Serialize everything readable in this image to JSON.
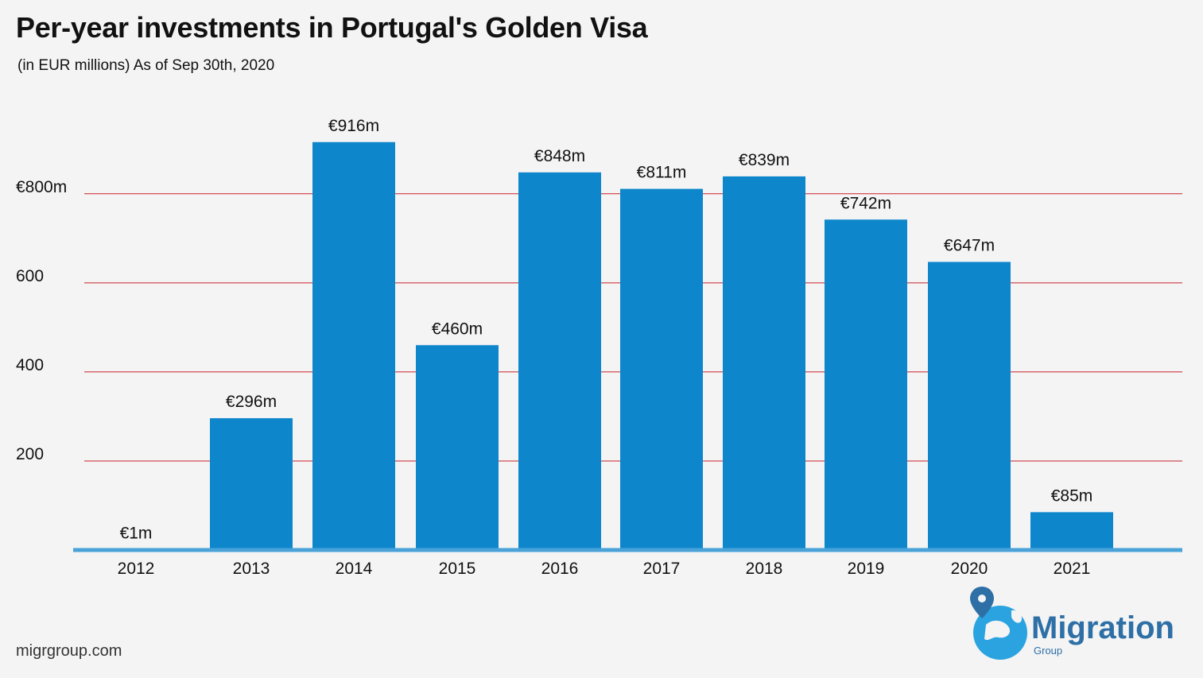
{
  "header": {
    "title": "Per-year investments in Portugal's Golden Visa",
    "subtitle": "(in EUR millions) As of Sep 30th, 2020"
  },
  "footer": {
    "source": "migrgroup.com"
  },
  "logo": {
    "name": "Migration",
    "sub": "Group"
  },
  "colors": {
    "bar": "#0e86cc",
    "grid": "#c8202a",
    "baseline": "#4aa3d8",
    "text": "#111111",
    "logo": "#2e6fa6"
  },
  "chart_data": {
    "type": "bar",
    "title": "Per-year investments in Portugal's Golden Visa",
    "subtitle": "(in EUR millions) As of Sep 30th, 2020",
    "xlabel": "",
    "ylabel": "",
    "categories": [
      "2012",
      "2013",
      "2014",
      "2015",
      "2016",
      "2017",
      "2018",
      "2019",
      "2020",
      "2021"
    ],
    "values": [
      1,
      296,
      916,
      460,
      848,
      811,
      839,
      742,
      647,
      85
    ],
    "data_labels": [
      "€1m",
      "€296m",
      "€916m",
      "€460m",
      "€848m",
      "€811m",
      "€839m",
      "€742m",
      "€647m",
      "€85m"
    ],
    "yticks": [
      200,
      400,
      600,
      800
    ],
    "ytick_labels": [
      "200",
      "400",
      "600",
      "€800m"
    ],
    "ylim": [
      0,
      916
    ],
    "grid": true
  }
}
